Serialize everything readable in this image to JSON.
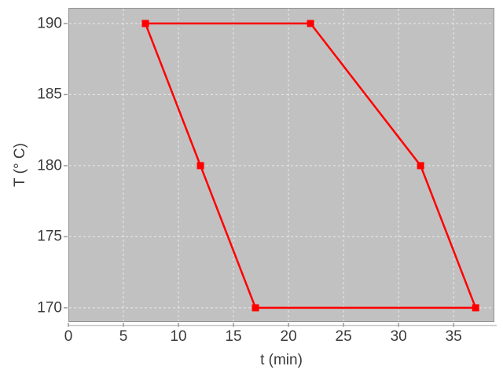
{
  "chart_data": {
    "type": "line",
    "title": "",
    "xlabel": "t (min)",
    "ylabel": "T (° C)",
    "x_ticks": [
      0,
      5,
      10,
      15,
      20,
      25,
      30,
      35
    ],
    "y_ticks": [
      170,
      175,
      180,
      185,
      190
    ],
    "xlim": [
      0,
      38.7
    ],
    "ylim": [
      169,
      191.1
    ],
    "grid": "white dashed gridlines on gray panel, at every major tick",
    "legend": "none",
    "series": [
      {
        "name": "temperature-cycle",
        "marker": "filled-square",
        "marker_size": 9,
        "line_width": 2.5,
        "color": "#ff0000",
        "points": [
          [
            7,
            190
          ],
          [
            22,
            190
          ],
          [
            32,
            180
          ],
          [
            37,
            170
          ],
          [
            17,
            170
          ],
          [
            12,
            180
          ],
          [
            7,
            190
          ]
        ]
      }
    ],
    "colors": {
      "plot_background": "#c1c1c1",
      "figure_background": "#ffffff",
      "gridline": "#e9e9e9",
      "axis_frame": "#929292",
      "axis_baseline": "#c9c9c9",
      "tick": "#9a9a9a",
      "text": "#3b3b3b",
      "series": "#ff0000"
    }
  }
}
